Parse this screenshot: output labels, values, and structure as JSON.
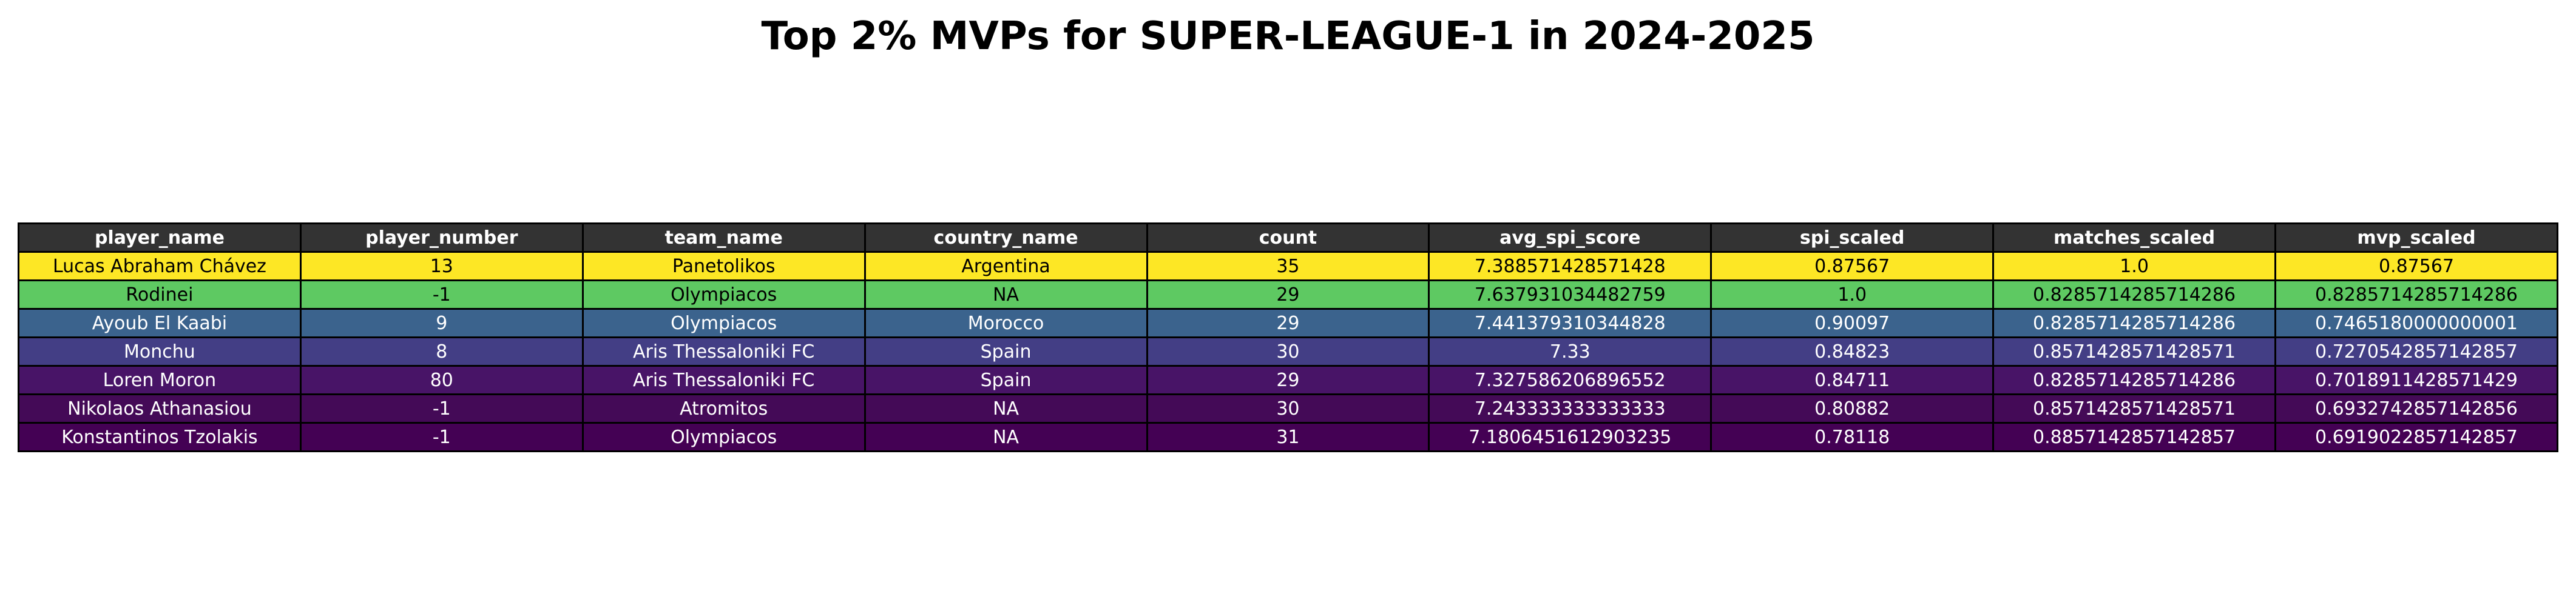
{
  "chart_data": {
    "type": "table",
    "title": "Top 2% MVPs for SUPER-LEAGUE-1 in 2024-2025",
    "header_color": "#333333",
    "columns": [
      "player_name",
      "player_number",
      "team_name",
      "country_name",
      "count",
      "avg_spi_score",
      "spi_scaled",
      "matches_scaled",
      "mvp_scaled"
    ],
    "rows": [
      {
        "cells": [
          "Lucas Abraham Chávez",
          "13",
          "Panetolikos",
          "Argentina",
          "35",
          "7.388571428571428",
          "0.87567",
          "1.0",
          "0.87567"
        ],
        "bg": "#fde725",
        "fg": "#000000"
      },
      {
        "cells": [
          "Rodinei",
          "-1",
          "Olympiacos",
          "NA",
          "29",
          "7.637931034482759",
          "1.0",
          "0.8285714285714286",
          "0.8285714285714286"
        ],
        "bg": "#5ec962",
        "fg": "#000000"
      },
      {
        "cells": [
          "Ayoub El Kaabi",
          "9",
          "Olympiacos",
          "Morocco",
          "29",
          "7.441379310344828",
          "0.90097",
          "0.8285714285714286",
          "0.7465180000000001"
        ],
        "bg": "#3b638d",
        "fg": "#ffffff"
      },
      {
        "cells": [
          "Monchu",
          "8",
          "Aris Thessaloniki FC",
          "Spain",
          "30",
          "7.33",
          "0.84823",
          "0.8571428571428571",
          "0.7270542857142857"
        ],
        "bg": "#433e85",
        "fg": "#ffffff"
      },
      {
        "cells": [
          "Loren Moron",
          "80",
          "Aris Thessaloniki FC",
          "Spain",
          "29",
          "7.327586206896552",
          "0.84711",
          "0.8285714285714286",
          "0.7018911428571429"
        ],
        "bg": "#481467",
        "fg": "#ffffff"
      },
      {
        "cells": [
          "Nikolaos Athanasiou",
          "-1",
          "Atromitos",
          "NA",
          "30",
          "7.243333333333333",
          "0.80882",
          "0.8571428571428571",
          "0.6932742857142856"
        ],
        "bg": "#440a57",
        "fg": "#ffffff"
      },
      {
        "cells": [
          "Konstantinos Tzolakis",
          "-1",
          "Olympiacos",
          "NA",
          "31",
          "7.1806451612903235",
          "0.78118",
          "0.8857142857142857",
          "0.6919022857142857"
        ],
        "bg": "#440154",
        "fg": "#ffffff"
      }
    ]
  }
}
